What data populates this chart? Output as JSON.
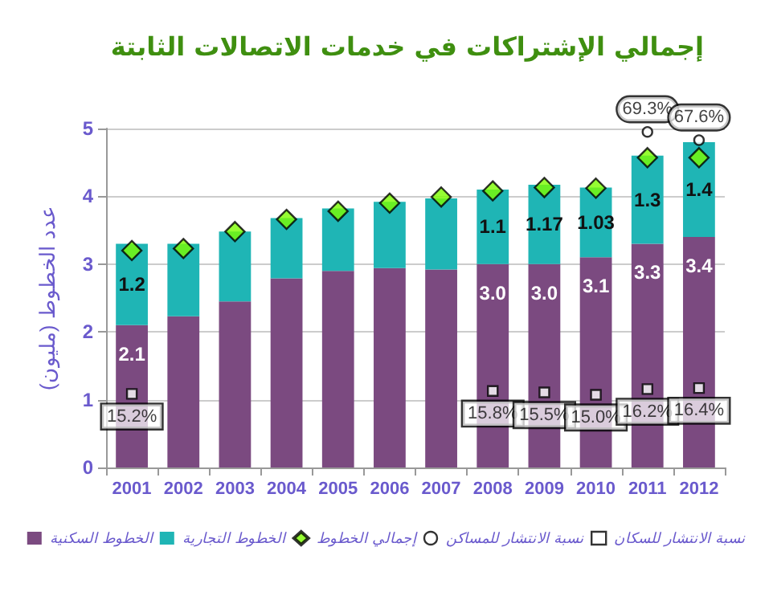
{
  "chart_data": {
    "type": "bar",
    "stacked": true,
    "title": "إجمالي الإشتراكات في خدمات الاتصالات الثابتة",
    "ylabel": "عدد الخطوط (مليون)",
    "categories": [
      "2001",
      "2002",
      "2003",
      "2004",
      "2005",
      "2006",
      "2007",
      "2008",
      "2009",
      "2010",
      "2011",
      "2012"
    ],
    "series": [
      {
        "name": "الخطوط السكنية",
        "color": "#7b4a80",
        "values": [
          2.1,
          2.23,
          2.45,
          2.79,
          2.9,
          2.94,
          2.92,
          3.0,
          3.0,
          3.1,
          3.3,
          3.4
        ],
        "value_labels": [
          "2.1",
          null,
          null,
          null,
          null,
          null,
          null,
          "3.0",
          "3.0",
          "3.1",
          "3.3",
          "3.4"
        ]
      },
      {
        "name": "الخطوط التجارية",
        "color": "#1fb5b5",
        "values": [
          1.2,
          1.07,
          1.03,
          0.89,
          0.92,
          0.98,
          1.05,
          1.1,
          1.17,
          1.03,
          1.3,
          1.4
        ],
        "value_labels": [
          "1.2",
          null,
          null,
          null,
          null,
          null,
          null,
          "1.1",
          "1.17",
          "1.03",
          "1.3",
          "1.4"
        ]
      },
      {
        "name": "إجمالي الخطوط",
        "type": "scatter",
        "marker": "diamond",
        "color": "#7cfc00",
        "values": [
          3.2,
          3.23,
          3.48,
          3.66,
          3.78,
          3.9,
          3.99,
          4.08,
          4.13,
          4.12,
          4.57,
          4.57
        ]
      },
      {
        "name": "نسبة الانتشار للمساكن",
        "type": "scatter",
        "marker": "circle",
        "axis": "y2",
        "color": "#000000",
        "values": [
          null,
          null,
          null,
          null,
          null,
          null,
          null,
          null,
          null,
          null,
          69.3,
          67.6
        ],
        "value_labels": [
          null,
          null,
          null,
          null,
          null,
          null,
          null,
          null,
          null,
          null,
          "69.3%",
          "67.6%"
        ]
      },
      {
        "name": "نسبة الانتشار للسكان",
        "type": "scatter",
        "marker": "square",
        "axis": "y2",
        "color": "#000000",
        "values": [
          15.2,
          null,
          null,
          null,
          null,
          null,
          null,
          15.8,
          15.5,
          15.0,
          16.2,
          16.4
        ],
        "value_labels": [
          "15.2%",
          null,
          null,
          null,
          null,
          null,
          null,
          "15.8%",
          "15.5%",
          "15.0%",
          "16.2%",
          "16.4%"
        ]
      }
    ],
    "y2lim": [
      0,
      70
    ],
    "ylim": [
      0,
      5
    ],
    "yticks": [
      0,
      1,
      2,
      3,
      4,
      5
    ],
    "grid": "y",
    "legend": "bottom"
  }
}
